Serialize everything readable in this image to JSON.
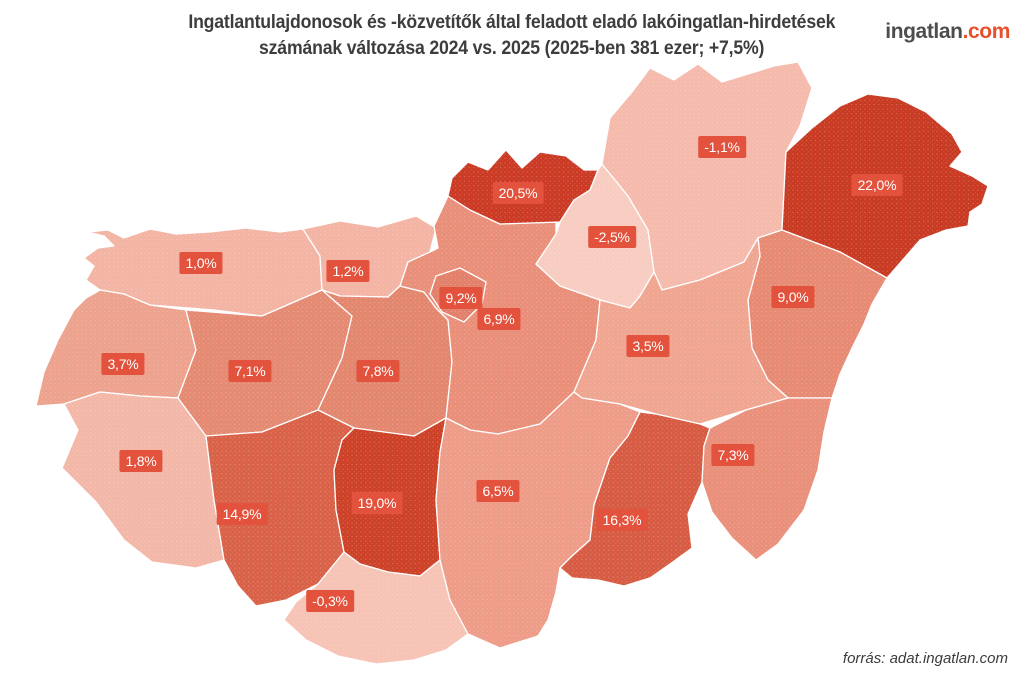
{
  "header": {
    "title_line1": "Ingatlantulajdonosok és -közvetítők által feladott eladó lakóingatlan-hirdetések",
    "title_line2": "számának változása 2024 vs. 2025 (2025-ben 381 ezer; +7,5%)"
  },
  "logo": {
    "brand": "ingatlan",
    "tld": ".com"
  },
  "footer": {
    "source": "forrás: adat.ingatlan.com"
  },
  "styles": {
    "badge_bg": "#e2523c",
    "badge_text": "#ffffff",
    "region_border": "#ffffff",
    "title_color": "#3d3d3d",
    "logo_brand_color": "#4d4d4f",
    "logo_tld_color": "#e8502c"
  },
  "chart_data": {
    "type": "heatmap",
    "subtype": "choropleth-map-hungary-counties",
    "title": "Ingatlantulajdonosok és -közvetítők által feladott eladó lakóingatlan-hirdetések számának változása 2024 vs. 2025 (2025-ben 381 ezer; +7,5%)",
    "unit": "%",
    "total_2025": "381 ezer",
    "overall_change_label": "+7,5%",
    "legend": "none (values labeled directly on map)",
    "regions": [
      {
        "id": "gyor-moson-sopron",
        "name": "Győr-Moson-Sopron",
        "value": 1.0,
        "label": "1,0%",
        "color": "#f3b4a4"
      },
      {
        "id": "komarom-esztergom",
        "name": "Komárom-Esztergom",
        "value": 1.2,
        "label": "1,2%",
        "color": "#f3b4a4"
      },
      {
        "id": "vas",
        "name": "Vas",
        "value": 3.7,
        "label": "3,7%",
        "color": "#eca28d"
      },
      {
        "id": "zala",
        "name": "Zala",
        "value": 1.8,
        "label": "1,8%",
        "color": "#f3b7a8"
      },
      {
        "id": "veszprem",
        "name": "Veszprém",
        "value": 7.1,
        "label": "7,1%",
        "color": "#e58a72"
      },
      {
        "id": "fejer",
        "name": "Fejér",
        "value": 7.8,
        "label": "7,8%",
        "color": "#e3866e"
      },
      {
        "id": "somogy",
        "name": "Somogy",
        "value": 14.9,
        "label": "14,9%",
        "color": "#d96147"
      },
      {
        "id": "tolna",
        "name": "Tolna",
        "value": 19.0,
        "label": "19,0%",
        "color": "#cc4127"
      },
      {
        "id": "baranya",
        "name": "Baranya",
        "value": -0.3,
        "label": "-0,3%",
        "color": "#f6c3b5"
      },
      {
        "id": "pest",
        "name": "Pest",
        "value": 6.9,
        "label": "6,9%",
        "color": "#e98f79"
      },
      {
        "id": "budapest",
        "name": "Budapest",
        "value": 9.2,
        "label": "9,2%",
        "color": "#e2806a"
      },
      {
        "id": "nograd",
        "name": "Nógrád",
        "value": 20.5,
        "label": "20,5%",
        "color": "#cb3a24"
      },
      {
        "id": "heves",
        "name": "Heves",
        "value": -2.5,
        "label": "-2,5%",
        "color": "#f8ccc0"
      },
      {
        "id": "borsod-abauj-zemplen",
        "name": "Borsod-Abaúj-Zemplén",
        "value": -1.1,
        "label": "-1,1%",
        "color": "#f5baac"
      },
      {
        "id": "szabolcs-szatmar-bereg",
        "name": "Szabolcs-Szatmár-Bereg",
        "value": 22.0,
        "label": "22,0%",
        "color": "#c93a23"
      },
      {
        "id": "hajdu-bihar",
        "name": "Hajdú-Bihar",
        "value": 9.0,
        "label": "9,0%",
        "color": "#e78a73"
      },
      {
        "id": "jasz-nagykun-szolnok",
        "name": "Jász-Nagykun-Szolnok",
        "value": 3.5,
        "label": "3,5%",
        "color": "#f0a590"
      },
      {
        "id": "bacs-kiskun",
        "name": "Bács-Kiskun",
        "value": 6.5,
        "label": "6,5%",
        "color": "#ee9c88"
      },
      {
        "id": "csongrad-csanad",
        "name": "Csongrád-Csanád",
        "value": 16.3,
        "label": "16,3%",
        "color": "#d65b42"
      },
      {
        "id": "bekes",
        "name": "Békés",
        "value": 7.3,
        "label": "7,3%",
        "color": "#e98f7a"
      }
    ]
  }
}
